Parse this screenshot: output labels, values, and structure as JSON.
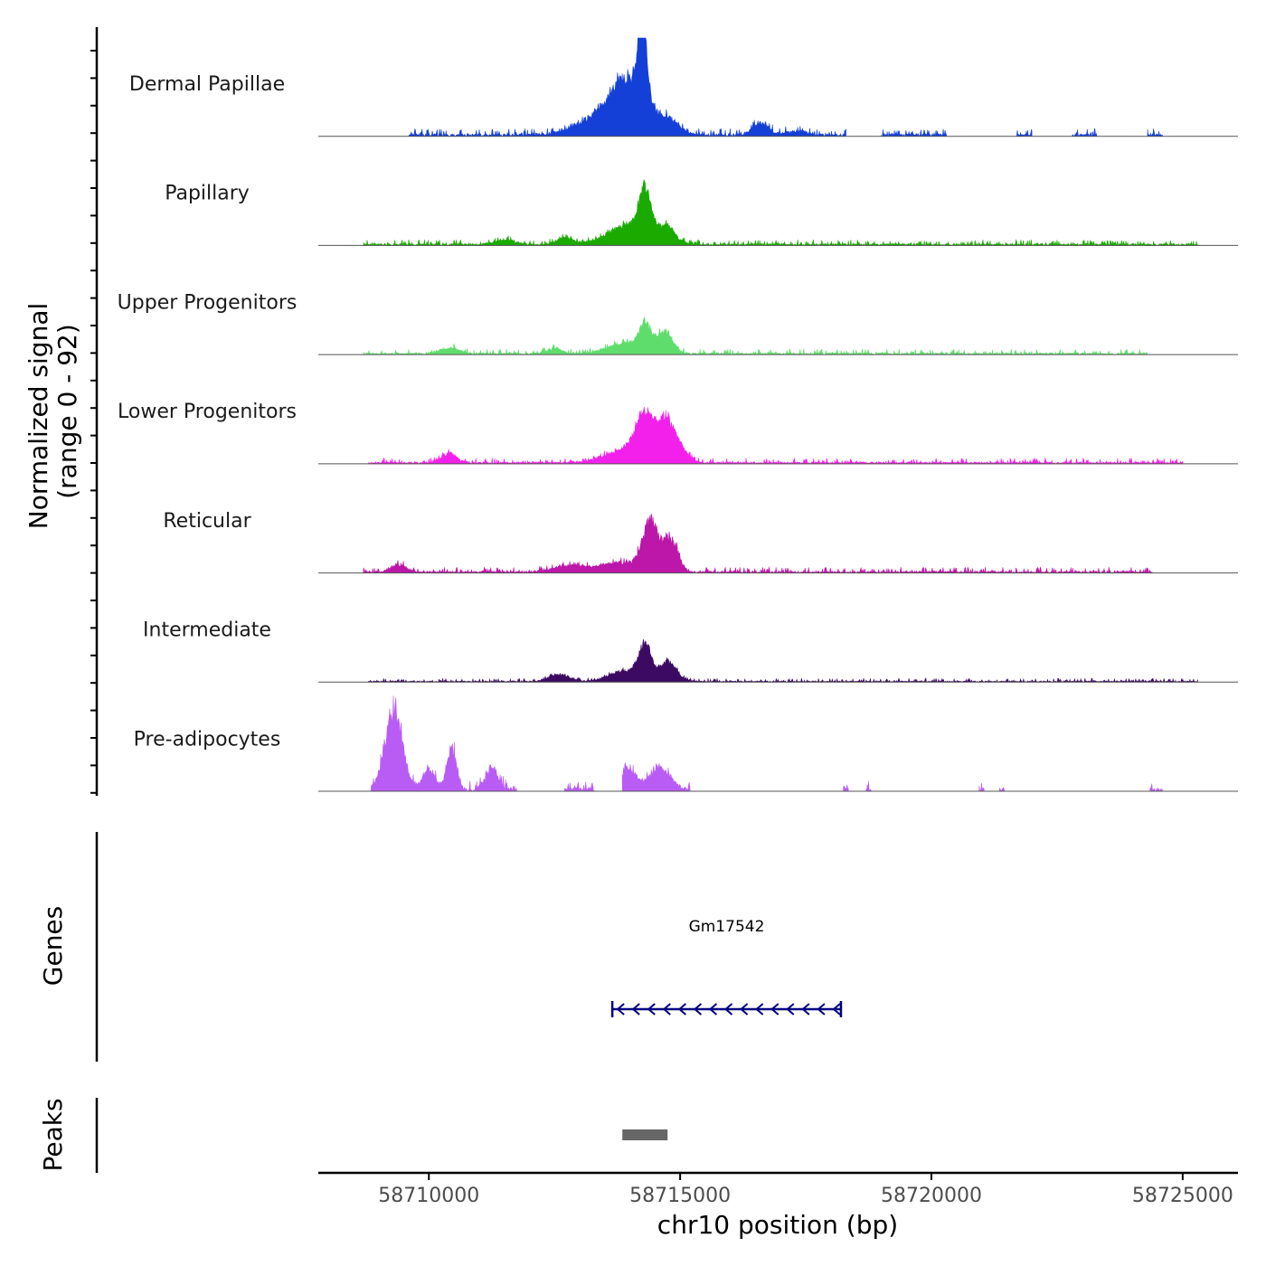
{
  "chart_data": {
    "type": "area",
    "title": "",
    "ylabel_line1": "Normalized signal",
    "ylabel_line2": "(range 0 - 92)",
    "ylim": [
      0,
      92
    ],
    "xlabel": "chr10 position (bp)",
    "xlim": [
      58707800,
      58726100
    ],
    "xticks": [
      58710000,
      58715000,
      58720000,
      58725000
    ],
    "xtick_labels": [
      "58710000",
      "58715000",
      "58720000",
      "58725000"
    ],
    "genes_label": "Genes",
    "peaks_label": "Peaks",
    "series": [
      {
        "name": "Dermal Papillae",
        "color": "#1440d8",
        "peaks": [
          [
            58714000,
            48,
            350
          ],
          [
            58714250,
            85,
            90
          ],
          [
            58713500,
            20,
            500
          ],
          [
            58714800,
            14,
            200
          ],
          [
            58716600,
            14,
            150
          ],
          [
            58717300,
            4,
            200
          ]
        ],
        "noise": 4,
        "support": [
          [
            58709600,
            58718300
          ],
          [
            58719000,
            58720300
          ],
          [
            58721700,
            58722000
          ],
          [
            58722800,
            58723300
          ],
          [
            58724300,
            58724600
          ]
        ],
        "seed": 3
      },
      {
        "name": "Papillary",
        "color": "#1aaa00",
        "peaks": [
          [
            58714050,
            22,
            450
          ],
          [
            58714300,
            46,
            110
          ],
          [
            58714750,
            14,
            150
          ],
          [
            58712700,
            8,
            150
          ],
          [
            58711500,
            5,
            200
          ]
        ],
        "noise": 3,
        "support": [
          [
            58708700,
            58725300
          ]
        ],
        "seed": 7
      },
      {
        "name": "Upper Progenitors",
        "color": "#5fdd6c",
        "peaks": [
          [
            58714000,
            12,
            400
          ],
          [
            58714300,
            24,
            120
          ],
          [
            58714700,
            22,
            150
          ],
          [
            58712500,
            6,
            150
          ],
          [
            58710400,
            6,
            200
          ]
        ],
        "noise": 3,
        "support": [
          [
            58708700,
            58724300
          ]
        ],
        "seed": 11
      },
      {
        "name": "Lower Progenitors",
        "color": "#f220ea",
        "peaks": [
          [
            58714300,
            42,
            180
          ],
          [
            58714750,
            42,
            180
          ],
          [
            58714000,
            15,
            450
          ],
          [
            58715100,
            6,
            150
          ],
          [
            58710400,
            10,
            150
          ]
        ],
        "noise": 3,
        "support": [
          [
            58708800,
            58725000
          ]
        ],
        "seed": 13
      },
      {
        "name": "Reticular",
        "color": "#bc17a8",
        "peaks": [
          [
            58714400,
            52,
            150
          ],
          [
            58714800,
            35,
            150
          ],
          [
            58713800,
            10,
            400
          ],
          [
            58709400,
            8,
            150
          ],
          [
            58712800,
            7,
            300
          ]
        ],
        "noise": 3,
        "support": [
          [
            58708700,
            58724400
          ]
        ],
        "seed": 17
      },
      {
        "name": "Intermediate",
        "color": "#3d0a63",
        "peaks": [
          [
            58714300,
            36,
            120
          ],
          [
            58714750,
            20,
            180
          ],
          [
            58713900,
            12,
            300
          ],
          [
            58712600,
            8,
            200
          ]
        ],
        "noise": 2,
        "support": [
          [
            58708800,
            58725300
          ]
        ],
        "seed": 19
      },
      {
        "name": "Pre-adipocytes",
        "color": "#b95cf5",
        "peaks": [
          [
            58709300,
            88,
            170
          ],
          [
            58710450,
            48,
            90
          ],
          [
            58710000,
            22,
            120
          ],
          [
            58711250,
            22,
            120
          ],
          [
            58713950,
            22,
            170
          ],
          [
            58714600,
            24,
            200
          ]
        ],
        "noise": 6,
        "support": [
          [
            58708850,
            58711750
          ],
          [
            58712700,
            58713300
          ],
          [
            58713850,
            58715200
          ],
          [
            58718250,
            58718350
          ],
          [
            58718700,
            58718800
          ],
          [
            58720950,
            58721050
          ],
          [
            58721350,
            58721450
          ],
          [
            58724350,
            58724600
          ]
        ],
        "seed": 23
      }
    ],
    "genes": [
      {
        "name": "Gm17542",
        "start": 58713650,
        "end": 58718200,
        "strand": "-",
        "color": "#00007f"
      }
    ],
    "peak_regions": [
      {
        "start": 58713850,
        "end": 58714750,
        "color": "#666666"
      }
    ]
  }
}
